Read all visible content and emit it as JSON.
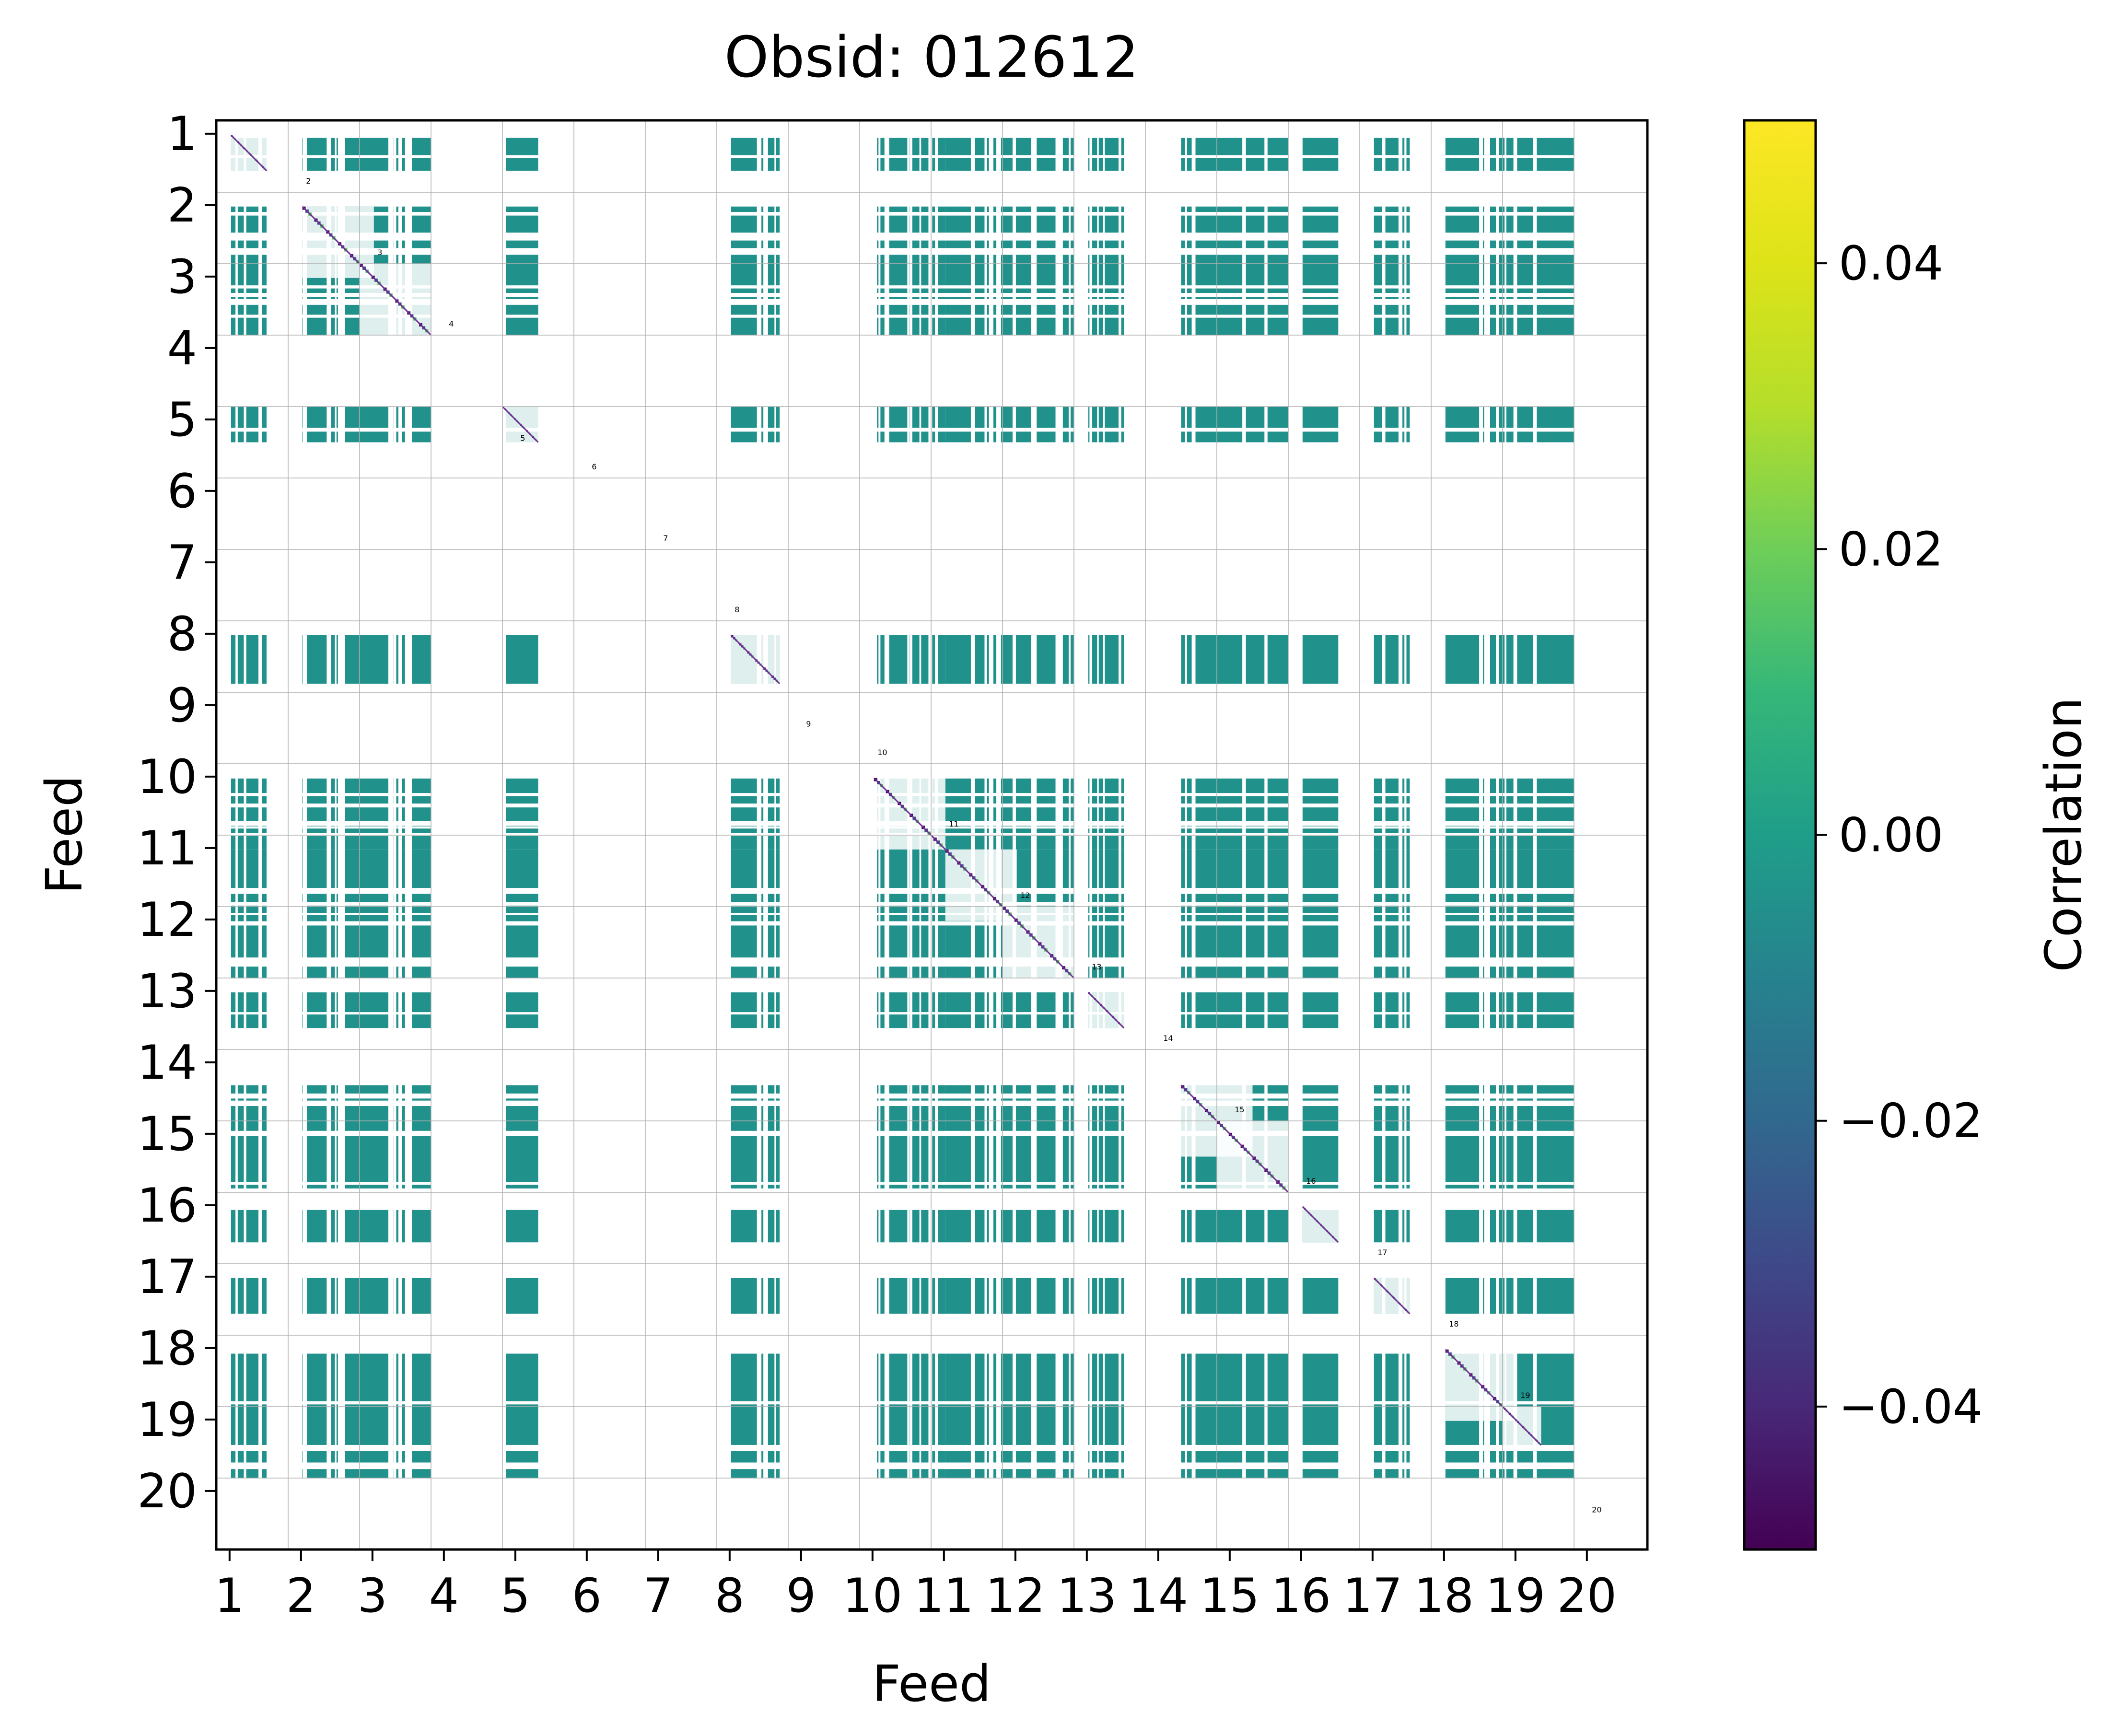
{
  "chart_data": {
    "type": "heatmap",
    "title": "Obsid: 012612",
    "xlabel": "Feed",
    "ylabel": "Feed",
    "x_tick_labels": [
      "1",
      "2",
      "3",
      "4",
      "5",
      "6",
      "7",
      "8",
      "9",
      "10",
      "11",
      "12",
      "13",
      "14",
      "15",
      "16",
      "17",
      "18",
      "19",
      "20"
    ],
    "y_tick_labels": [
      "1",
      "2",
      "3",
      "4",
      "5",
      "6",
      "7",
      "8",
      "9",
      "10",
      "11",
      "12",
      "13",
      "14",
      "15",
      "16",
      "17",
      "18",
      "19",
      "20"
    ],
    "feed_labels": [
      "1",
      "2",
      "3",
      "4",
      "5",
      "6",
      "7",
      "8",
      "9",
      "10",
      "11",
      "12",
      "13",
      "14",
      "15",
      "16",
      "17",
      "18",
      "19",
      "20"
    ],
    "colorbar": {
      "label": "Correlation",
      "min": -0.05,
      "max": 0.05,
      "ticks": [
        -0.04,
        -0.02,
        0.0,
        0.02,
        0.04
      ],
      "tick_labels": [
        "−0.04",
        "−0.02",
        "0.00",
        "0.02",
        "0.04"
      ],
      "colormap": "viridis"
    },
    "active_feeds": [
      "1",
      "2",
      "3",
      "5",
      "8",
      "10",
      "11",
      "12",
      "13",
      "14",
      "15",
      "16",
      "17",
      "18",
      "19"
    ],
    "inactive_feeds": [
      "4",
      "6",
      "7",
      "9",
      "20"
    ],
    "typical_offdiagonal_value": 0.0,
    "colors": {
      "offdiag": "#21918c",
      "diagonal_low": "#440154",
      "diagonal_mid": "#3b528b",
      "diagonal_high": "#5ec962",
      "grid": "#b0b0b0"
    }
  }
}
